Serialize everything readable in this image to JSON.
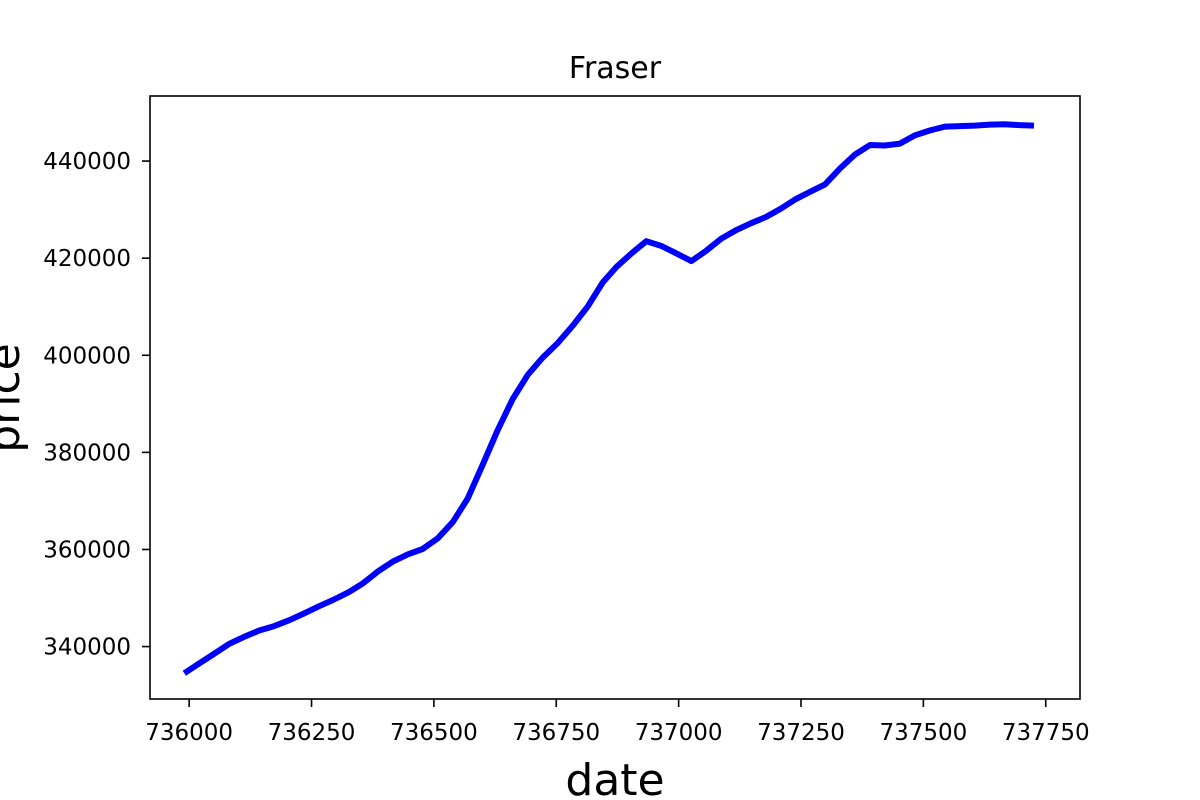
{
  "chart_data": {
    "type": "line",
    "title": "Fraser",
    "xlabel": "date",
    "ylabel": "price",
    "xlim": [
      735920,
      737820
    ],
    "ylim": [
      329200,
      453400
    ],
    "x_ticks": [
      736000,
      736250,
      736500,
      736750,
      737000,
      737250,
      737500,
      737750
    ],
    "y_ticks": [
      340000,
      360000,
      380000,
      400000,
      420000,
      440000
    ],
    "grid": false,
    "line_color": "#0000ff",
    "series": [
      {
        "x": [
          735990,
          736020,
          736051,
          736081,
          736112,
          736143,
          736173,
          736204,
          736234,
          736265,
          736296,
          736326,
          736355,
          736386,
          736416,
          736447,
          736477,
          736508,
          736539,
          736569,
          736600,
          736630,
          736661,
          736692,
          736722,
          736753,
          736783,
          736814,
          736845,
          736873,
          736904,
          736934,
          736965,
          736995,
          737026,
          737056,
          737087,
          737118,
          737148,
          737179,
          737209,
          737240,
          737271,
          737299,
          737330,
          737360,
          737391,
          737421,
          737452,
          737483,
          737513,
          737544,
          737574,
          737605,
          737636,
          737665,
          737696,
          737726
        ],
        "y": [
          334500,
          336500,
          338500,
          340500,
          342000,
          343300,
          344200,
          345400,
          346800,
          348300,
          349700,
          351200,
          353000,
          355500,
          357500,
          359000,
          360100,
          362300,
          365700,
          370500,
          377500,
          384500,
          391000,
          396000,
          399500,
          402500,
          406000,
          410000,
          415000,
          418200,
          421000,
          423500,
          422500,
          421000,
          419400,
          421500,
          424000,
          425800,
          427200,
          428500,
          430200,
          432200,
          433800,
          435200,
          438500,
          441300,
          443300,
          443200,
          443600,
          445300,
          446300,
          447100,
          447200,
          447300,
          447500,
          447600,
          447400,
          447300
        ]
      }
    ]
  }
}
